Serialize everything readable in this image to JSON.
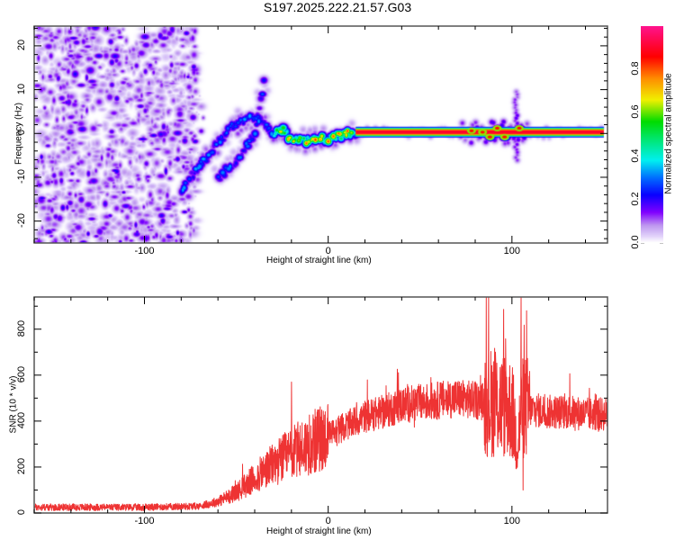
{
  "title": "S197.2025.222.21.57.G03",
  "chart_data": [
    {
      "type": "heatmap",
      "name": "spectrogram",
      "title": "S197.2025.222.21.57.G03",
      "xlabel": "Height of straight line (km)",
      "ylabel": "Frequency (Hz)",
      "xlim": [
        -160,
        152
      ],
      "ylim": [
        -25,
        24.5
      ],
      "xticks": [
        -100,
        0,
        100
      ],
      "xtick_labels": [
        "-100",
        "0",
        "100"
      ],
      "yticks": [
        -20,
        -10,
        0,
        10,
        20
      ],
      "ytick_labels": [
        "-20",
        "-10",
        "0",
        "10",
        "20"
      ],
      "colorbar": {
        "label": "Normalized spectral amplitude",
        "range": [
          0,
          1
        ],
        "ticks": [
          0.0,
          0.2,
          0.4,
          0.6,
          0.8
        ],
        "tick_labels": [
          "0.0",
          "0.2",
          "0.4",
          "0.6",
          "0.8"
        ],
        "colors": [
          "#ffffff",
          "#c8a8f0",
          "#8000ff",
          "#0000ff",
          "#0080ff",
          "#00ffff",
          "#00ff80",
          "#00e000",
          "#ffff00",
          "#ff8000",
          "#ff0000",
          "#ff0060",
          "#ff1090"
        ]
      },
      "tone_trace": {
        "description_points": [
          {
            "x": -78,
            "y": -11.5
          },
          {
            "x": -62,
            "y": -3
          },
          {
            "x": -52,
            "y": 2
          },
          {
            "x": -40,
            "y": 4
          },
          {
            "x": -30,
            "y": 0
          },
          {
            "x": -25,
            "y": 1
          },
          {
            "x": -20,
            "y": -1.5
          },
          {
            "x": -10,
            "y": -1.5
          },
          {
            "x": 0,
            "y": -1
          },
          {
            "x": 10,
            "y": 0
          },
          {
            "x": 15,
            "y": 0.3
          },
          {
            "x": 150,
            "y": 0.3
          }
        ],
        "secondary_branch": [
          {
            "x": -60,
            "y": -10
          },
          {
            "x": -50,
            "y": -6
          },
          {
            "x": -40,
            "y": 0
          },
          {
            "x": -35,
            "y": 12
          }
        ],
        "solid_segment_x": [
          15,
          150
        ],
        "disturbance_x": 102
      }
    },
    {
      "type": "line",
      "name": "snr",
      "xlabel": "Height of straight line (km)",
      "ylabel": "SNR (10 * v/v)",
      "xlim": [
        -160,
        152
      ],
      "ylim": [
        0,
        940
      ],
      "xticks": [
        -100,
        0,
        100
      ],
      "xtick_labels": [
        "-100",
        "0",
        "100"
      ],
      "yticks": [
        0,
        200,
        400,
        600,
        800
      ],
      "ytick_labels": [
        "0",
        "200",
        "400",
        "600",
        "800"
      ],
      "color": "#ee3333",
      "envelope": {
        "x": [
          -160,
          -100,
          -70,
          -60,
          -50,
          -40,
          -30,
          -20,
          -10,
          0,
          10,
          20,
          30,
          40,
          50,
          60,
          70,
          80,
          90,
          95,
          100,
          103,
          105,
          108,
          110,
          120,
          130,
          140,
          152
        ],
        "y": [
          25,
          25,
          30,
          50,
          90,
          150,
          210,
          260,
          300,
          340,
          380,
          420,
          440,
          470,
          480,
          490,
          500,
          490,
          480,
          470,
          450,
          300,
          450,
          460,
          450,
          440,
          440,
          430,
          430
        ]
      },
      "peaks": [
        {
          "x": -20,
          "y": 570
        },
        {
          "x": 91,
          "y": 700
        },
        {
          "x": 105,
          "y": 940
        },
        {
          "x": 106,
          "y": 100
        },
        {
          "x": 108,
          "y": 880
        }
      ]
    }
  ]
}
